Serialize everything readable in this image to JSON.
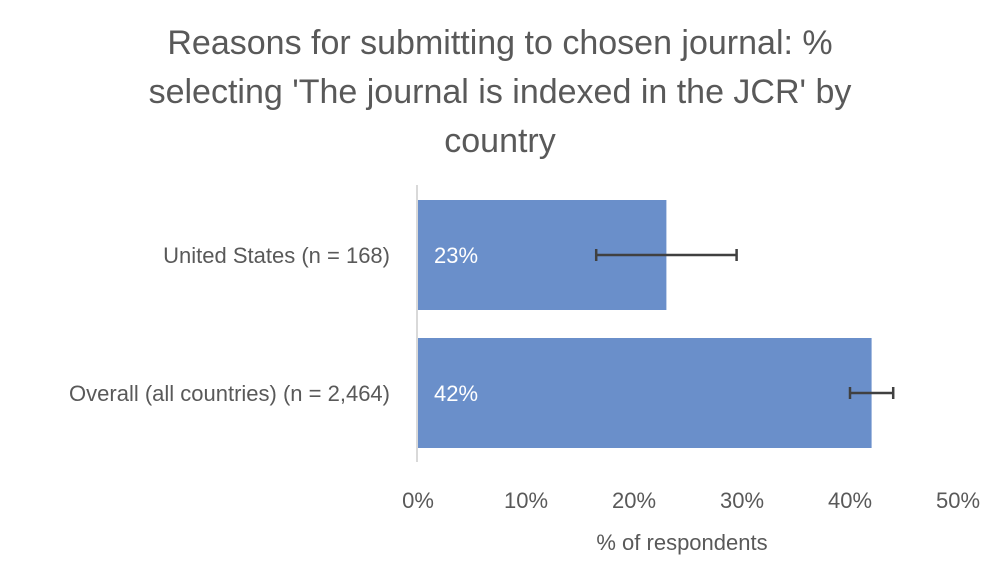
{
  "chart_data": {
    "type": "bar",
    "orientation": "horizontal",
    "title": "Reasons for submitting to chosen journal: % selecting 'The journal is indexed in the JCR' by country",
    "title_lines": [
      "Reasons for submitting to chosen journal: %",
      "selecting 'The journal is indexed in the JCR' by",
      "country"
    ],
    "categories": [
      "United States (n = 168)",
      "Overall (all countries) (n = 2,464)"
    ],
    "values": [
      23,
      42
    ],
    "value_labels": [
      "23%",
      "42%"
    ],
    "error_bars": [
      {
        "low": 16.5,
        "high": 29.5
      },
      {
        "low": 40.0,
        "high": 44.0
      }
    ],
    "xlabel": "% of respondents",
    "ylabel": "",
    "xlim": [
      0,
      50
    ],
    "x_ticks": [
      "0%",
      "10%",
      "20%",
      "30%",
      "40%",
      "50%"
    ],
    "grid": false,
    "legend": "none",
    "colors": {
      "bar": "#6a8fca",
      "error_bar": "#404040",
      "axis": "#d9d9d9",
      "text": "#595959",
      "data_label": "#ffffff"
    }
  }
}
